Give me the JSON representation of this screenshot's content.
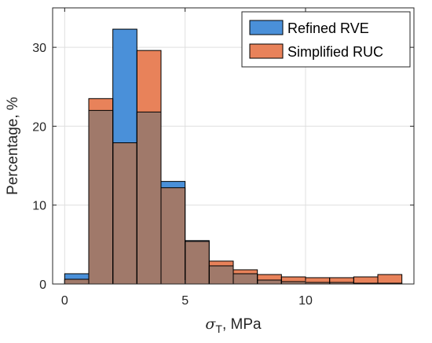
{
  "chart_data": {
    "type": "bar",
    "subtype": "overlaid-histogram",
    "x_label": "σT, MPa",
    "x_label_symbol": "σ",
    "x_label_subscript": "T",
    "x_label_unit": ", MPa",
    "y_label": "Percentage, %",
    "xlim": [
      -0.5,
      14.5
    ],
    "ylim": [
      0,
      35
    ],
    "x_ticks": [
      0,
      5,
      10
    ],
    "y_ticks": [
      0,
      10,
      20,
      30
    ],
    "grid": true,
    "legend_position": "top-right",
    "bin_edges": [
      0,
      1,
      2,
      3,
      4,
      5,
      6,
      7,
      8,
      9,
      10,
      11,
      12,
      13,
      14
    ],
    "series": [
      {
        "name": "Refined RVE",
        "color": "#0072BD",
        "fill": "#4a90d9",
        "values": [
          1.3,
          22.0,
          32.3,
          21.8,
          13.0,
          5.5,
          2.3,
          1.3,
          0.5,
          0.3,
          0.2,
          0.2,
          0.1,
          0.1
        ]
      },
      {
        "name": "Simplified RUC",
        "color": "#D95319",
        "fill": "#e8825a",
        "values": [
          0.6,
          23.5,
          17.9,
          29.6,
          12.2,
          5.4,
          2.9,
          1.8,
          1.2,
          0.9,
          0.8,
          0.8,
          0.9,
          1.2
        ]
      }
    ],
    "overlap_color": "#a0796a"
  }
}
